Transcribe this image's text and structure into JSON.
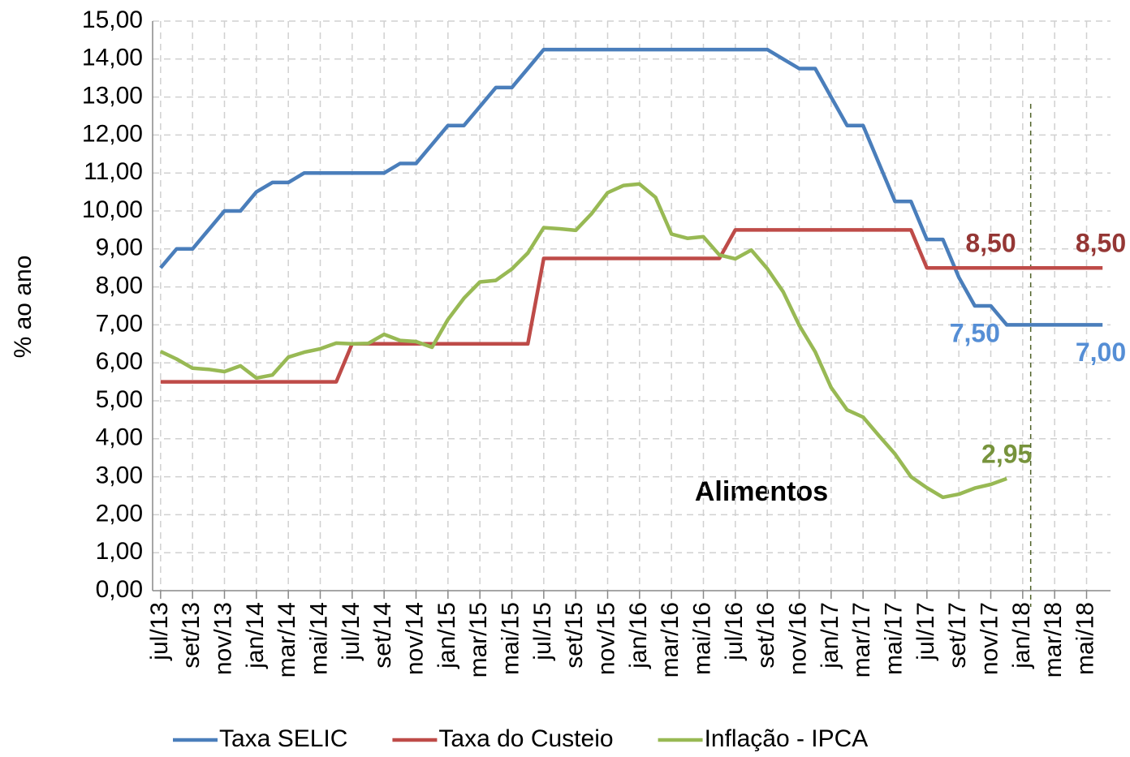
{
  "chart_data": {
    "type": "line",
    "annotation": "Alimentos",
    "y_label": "% ao ano",
    "categories": [
      "jul/13",
      null,
      "set/13",
      null,
      "nov/13",
      null,
      "jan/14",
      null,
      "mar/14",
      null,
      "mai/14",
      null,
      "jul/14",
      null,
      "set/14",
      null,
      "nov/14",
      null,
      "jan/15",
      null,
      "mar/15",
      null,
      "mai/15",
      null,
      "jul/15",
      null,
      "set/15",
      null,
      "nov/15",
      null,
      "jan/16",
      null,
      "mar/16",
      null,
      "mai/16",
      null,
      "jul/16",
      null,
      "set/16",
      null,
      "nov/16",
      null,
      "jan/17",
      null,
      "mar/17",
      null,
      "mai/17",
      null,
      "jul/17",
      null,
      "set/17",
      null,
      "nov/17",
      null,
      "jan/18",
      null,
      "mar/18",
      null,
      "mai/18",
      null
    ],
    "series": [
      {
        "name": "Taxa SELIC",
        "color": "#4a7ebb",
        "label_color": "#558ed5",
        "label_position": "below",
        "values": [
          8.5,
          9.0,
          9.0,
          9.5,
          10.0,
          10.0,
          10.5,
          10.75,
          10.75,
          11.0,
          11.0,
          11.0,
          11.0,
          11.0,
          11.0,
          11.25,
          11.25,
          11.75,
          12.25,
          12.25,
          12.75,
          13.25,
          13.25,
          13.75,
          14.25,
          14.25,
          14.25,
          14.25,
          14.25,
          14.25,
          14.25,
          14.25,
          14.25,
          14.25,
          14.25,
          14.25,
          14.25,
          14.25,
          14.25,
          14.0,
          13.75,
          13.75,
          13.0,
          12.25,
          12.25,
          11.25,
          10.25,
          10.25,
          9.25,
          9.25,
          8.25,
          7.5,
          7.5,
          7.0,
          7.0,
          7.0,
          7.0,
          7.0,
          7.0,
          7.0
        ],
        "value_labels": [
          null,
          null,
          null,
          null,
          null,
          null,
          null,
          null,
          null,
          null,
          null,
          null,
          null,
          null,
          null,
          null,
          null,
          null,
          null,
          null,
          null,
          null,
          null,
          null,
          null,
          null,
          null,
          null,
          null,
          null,
          null,
          null,
          null,
          null,
          null,
          null,
          null,
          null,
          null,
          null,
          null,
          null,
          null,
          null,
          null,
          null,
          null,
          null,
          null,
          null,
          null,
          "7,50",
          null,
          null,
          null,
          null,
          null,
          null,
          null,
          "7,00"
        ]
      },
      {
        "name": "Taxa do Custeio",
        "color": "#be4b48",
        "label_color": "#953735",
        "label_position": "above",
        "values": [
          5.5,
          5.5,
          5.5,
          5.5,
          5.5,
          5.5,
          5.5,
          5.5,
          5.5,
          5.5,
          5.5,
          5.5,
          6.5,
          6.5,
          6.5,
          6.5,
          6.5,
          6.5,
          6.5,
          6.5,
          6.5,
          6.5,
          6.5,
          6.5,
          8.75,
          8.75,
          8.75,
          8.75,
          8.75,
          8.75,
          8.75,
          8.75,
          8.75,
          8.75,
          8.75,
          8.75,
          9.5,
          9.5,
          9.5,
          9.5,
          9.5,
          9.5,
          9.5,
          9.5,
          9.5,
          9.5,
          9.5,
          9.5,
          8.5,
          8.5,
          8.5,
          8.5,
          8.5,
          8.5,
          8.5,
          8.5,
          8.5,
          8.5,
          8.5,
          8.5
        ],
        "value_labels": [
          null,
          null,
          null,
          null,
          null,
          null,
          null,
          null,
          null,
          null,
          null,
          null,
          null,
          null,
          null,
          null,
          null,
          null,
          null,
          null,
          null,
          null,
          null,
          null,
          null,
          null,
          null,
          null,
          null,
          null,
          null,
          null,
          null,
          null,
          null,
          null,
          null,
          null,
          null,
          null,
          null,
          null,
          null,
          null,
          null,
          null,
          null,
          null,
          null,
          null,
          null,
          null,
          "8,50",
          null,
          null,
          null,
          null,
          null,
          null,
          "8,50"
        ]
      },
      {
        "name": "Inflação - IPCA",
        "color": "#98b954",
        "label_color": "#77933c",
        "label_position": "above",
        "values": [
          6.3,
          6.1,
          5.86,
          5.83,
          5.77,
          5.92,
          5.6,
          5.68,
          6.15,
          6.28,
          6.37,
          6.52,
          6.5,
          6.51,
          6.75,
          6.59,
          6.56,
          6.41,
          7.14,
          7.7,
          8.13,
          8.17,
          8.47,
          8.89,
          9.56,
          9.53,
          9.49,
          9.93,
          10.48,
          10.67,
          10.71,
          10.36,
          9.39,
          9.28,
          9.32,
          8.84,
          8.74,
          8.97,
          8.48,
          7.87,
          6.99,
          6.29,
          5.35,
          4.76,
          4.57,
          4.08,
          3.6,
          3.0,
          2.71,
          2.46,
          2.54,
          2.7,
          2.8,
          2.95,
          null,
          null,
          null,
          null,
          null,
          null
        ],
        "value_labels": [
          null,
          null,
          null,
          null,
          null,
          null,
          null,
          null,
          null,
          null,
          null,
          null,
          null,
          null,
          null,
          null,
          null,
          null,
          null,
          null,
          null,
          null,
          null,
          null,
          null,
          null,
          null,
          null,
          null,
          null,
          null,
          null,
          null,
          null,
          null,
          null,
          null,
          null,
          null,
          null,
          null,
          null,
          null,
          null,
          null,
          null,
          null,
          null,
          null,
          null,
          null,
          null,
          null,
          "2,95",
          null,
          null,
          null,
          null,
          null,
          null
        ]
      }
    ],
    "ylim": [
      0,
      15
    ],
    "yticks": [
      {
        "value": 0,
        "label": "0,00"
      },
      {
        "value": 1,
        "label": "1,00"
      },
      {
        "value": 2,
        "label": "2,00"
      },
      {
        "value": 3,
        "label": "3,00"
      },
      {
        "value": 4,
        "label": "4,00"
      },
      {
        "value": 5,
        "label": "5,00"
      },
      {
        "value": 6,
        "label": "6,00"
      },
      {
        "value": 7,
        "label": "7,00"
      },
      {
        "value": 8,
        "label": "8,00"
      },
      {
        "value": 9,
        "label": "9,00"
      },
      {
        "value": 10,
        "label": "10,00"
      },
      {
        "value": 11,
        "label": "11,00"
      },
      {
        "value": 12,
        "label": "12,00"
      },
      {
        "value": 13,
        "label": "13,00"
      },
      {
        "value": 14,
        "label": "14,00"
      },
      {
        "value": 15,
        "label": "15,00"
      }
    ],
    "grid": true,
    "legend": "bottom"
  }
}
